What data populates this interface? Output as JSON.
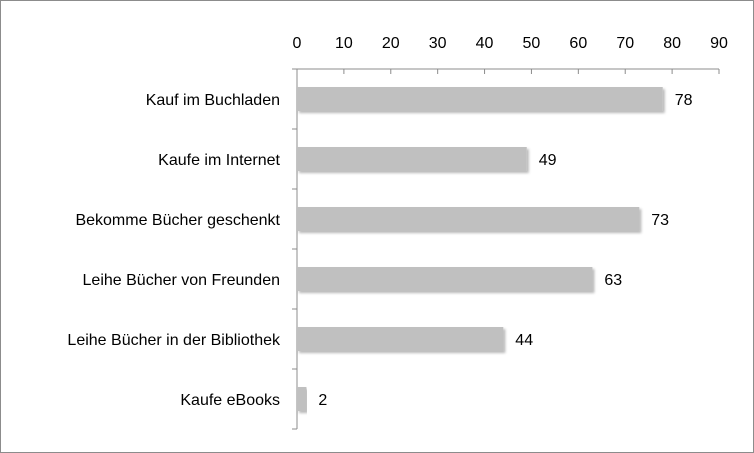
{
  "chart_data": {
    "type": "bar",
    "orientation": "horizontal",
    "categories": [
      "Kauf im Buchladen",
      "Kaufe im Internet",
      "Bekomme Bücher geschenkt",
      "Leihe Bücher von Freunden",
      "Leihe Bücher in der Bibliothek",
      "Kaufe eBooks"
    ],
    "values": [
      78,
      49,
      73,
      63,
      44,
      2
    ],
    "data_labels": [
      "78",
      "49",
      "73",
      "63",
      "44",
      "2"
    ],
    "xlim": [
      0,
      90
    ],
    "x_ticks": [
      0,
      10,
      20,
      30,
      40,
      50,
      60,
      70,
      80,
      90
    ],
    "x_axis_position": "top",
    "grid": false,
    "legend": "none",
    "bar_color": "#c0c0c0",
    "title": "",
    "xlabel": "",
    "ylabel": ""
  }
}
